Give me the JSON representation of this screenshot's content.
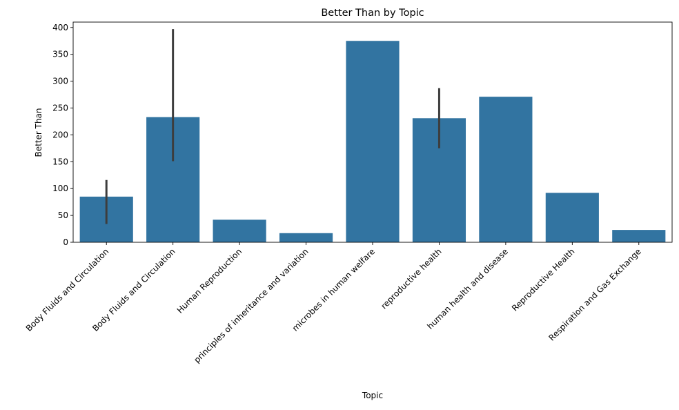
{
  "chart_data": {
    "type": "bar",
    "title": "Better Than by Topic",
    "xlabel": "Topic",
    "ylabel": "Better Than",
    "ylim": [
      0,
      410
    ],
    "yticks": [
      0,
      50,
      100,
      150,
      200,
      250,
      300,
      350,
      400
    ],
    "categories": [
      "Body Fluids and Circulation",
      "Body Fluids and Circulation",
      "Human Reproduction",
      "principles of inheritance and variation",
      "microbes in human welfare",
      "reproductive health",
      "human health and disease",
      "Reproductive Health",
      "Respiration and Gas Exchange"
    ],
    "values": [
      85,
      233,
      42,
      17,
      375,
      231,
      271,
      92,
      23
    ],
    "error_bars": [
      [
        34,
        116
      ],
      [
        151,
        397
      ],
      null,
      null,
      null,
      [
        175,
        287
      ],
      null,
      null,
      null
    ],
    "bar_color": "#3274a1",
    "error_color": "#3d3d3d",
    "grid": false,
    "legend": "none"
  }
}
